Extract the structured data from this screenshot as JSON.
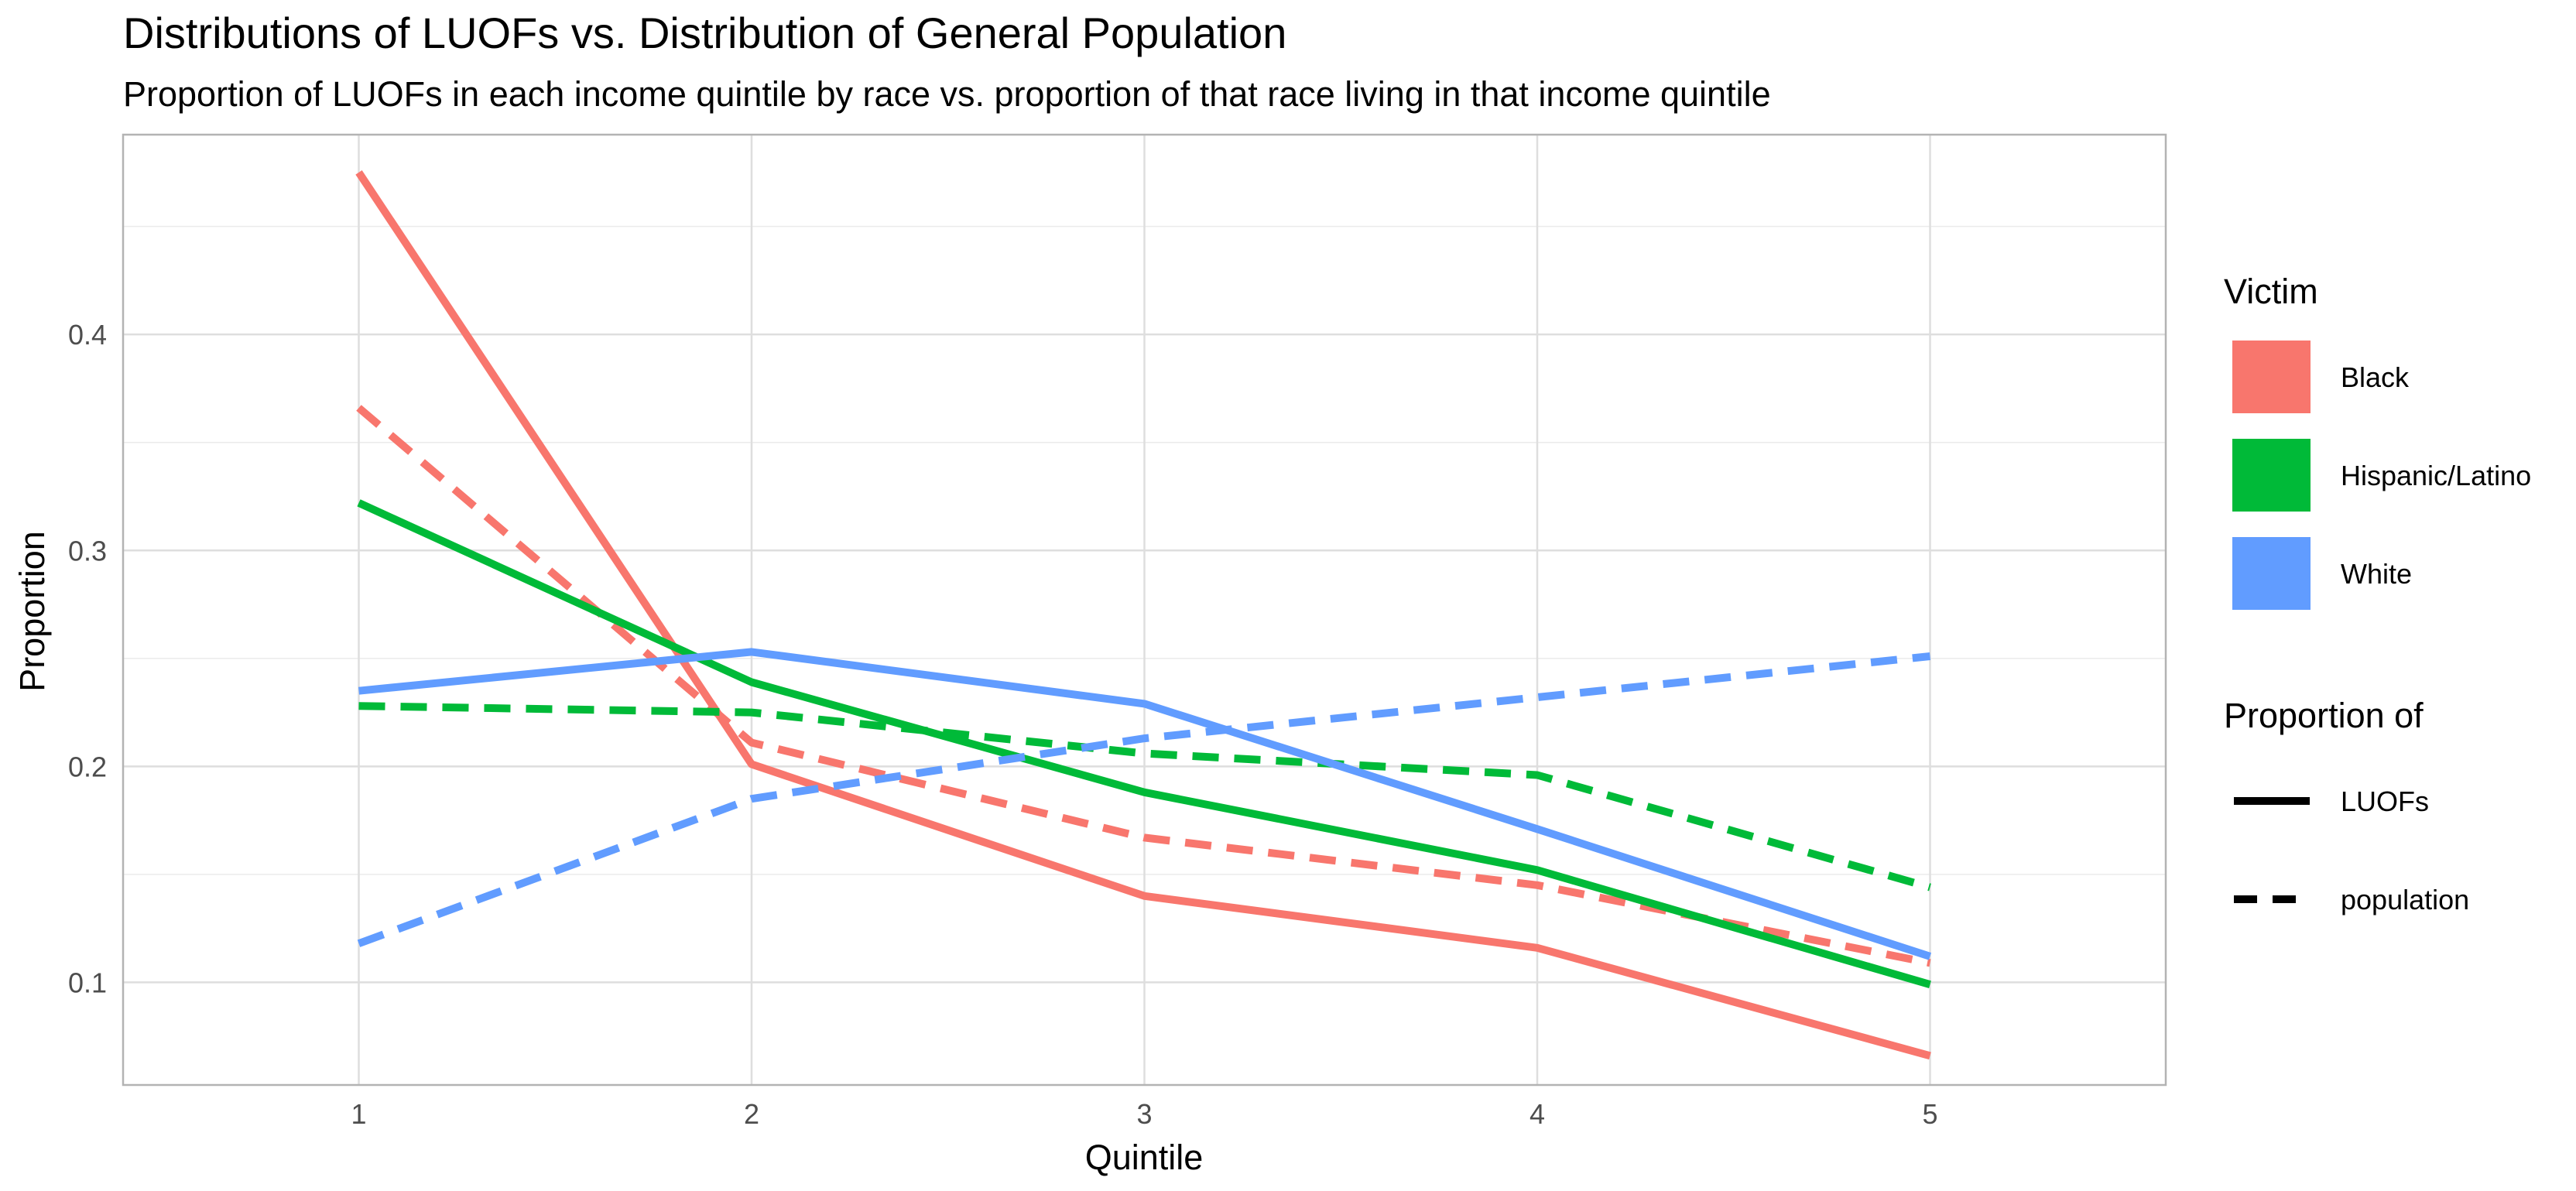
{
  "chart_data": {
    "type": "line",
    "title": "Distributions of LUOFs vs. Distribution of General Population",
    "subtitle": "Proportion of LUOFs in each income quintile by race vs. proportion of that race living in that income quintile",
    "xlabel": "Quintile",
    "ylabel": "Proportion",
    "x": [
      1,
      2,
      3,
      4,
      5
    ],
    "x_ticks": [
      "1",
      "2",
      "3",
      "4",
      "5"
    ],
    "y_ticks": [
      "0.1",
      "0.2",
      "0.3",
      "0.4"
    ],
    "xlim": [
      0.4,
      5.6
    ],
    "ylim": [
      0.0525,
      0.4925
    ],
    "grid": true,
    "legend_placement": "right",
    "legend": {
      "color_title": "Victim",
      "color_entries": [
        {
          "label": "Black",
          "color": "#F8766D"
        },
        {
          "label": "Hispanic/Latino",
          "color": "#00BA38"
        },
        {
          "label": "White",
          "color": "#619CFF"
        }
      ],
      "linetype_title": "Proportion of",
      "linetype_entries": [
        {
          "label": "LUOFs",
          "dash": "solid"
        },
        {
          "label": "population",
          "dash": "dashed"
        }
      ]
    },
    "series": [
      {
        "victim": "Black",
        "measure": "LUOFs",
        "color": "#F8766D",
        "dash": "solid",
        "values": [
          0.475,
          0.201,
          0.14,
          0.116,
          0.066
        ]
      },
      {
        "victim": "Black",
        "measure": "population",
        "color": "#F8766D",
        "dash": "dashed",
        "values": [
          0.366,
          0.211,
          0.167,
          0.145,
          0.109
        ]
      },
      {
        "victim": "Hispanic/Latino",
        "measure": "LUOFs",
        "color": "#00BA38",
        "dash": "solid",
        "values": [
          0.322,
          0.239,
          0.188,
          0.152,
          0.099
        ]
      },
      {
        "victim": "Hispanic/Latino",
        "measure": "population",
        "color": "#00BA38",
        "dash": "dashed",
        "values": [
          0.228,
          0.225,
          0.206,
          0.196,
          0.144
        ]
      },
      {
        "victim": "White",
        "measure": "LUOFs",
        "color": "#619CFF",
        "dash": "solid",
        "values": [
          0.235,
          0.253,
          0.229,
          0.171,
          0.112
        ]
      },
      {
        "victim": "White",
        "measure": "population",
        "color": "#619CFF",
        "dash": "dashed",
        "values": [
          0.118,
          0.185,
          0.213,
          0.232,
          0.251
        ]
      }
    ]
  }
}
